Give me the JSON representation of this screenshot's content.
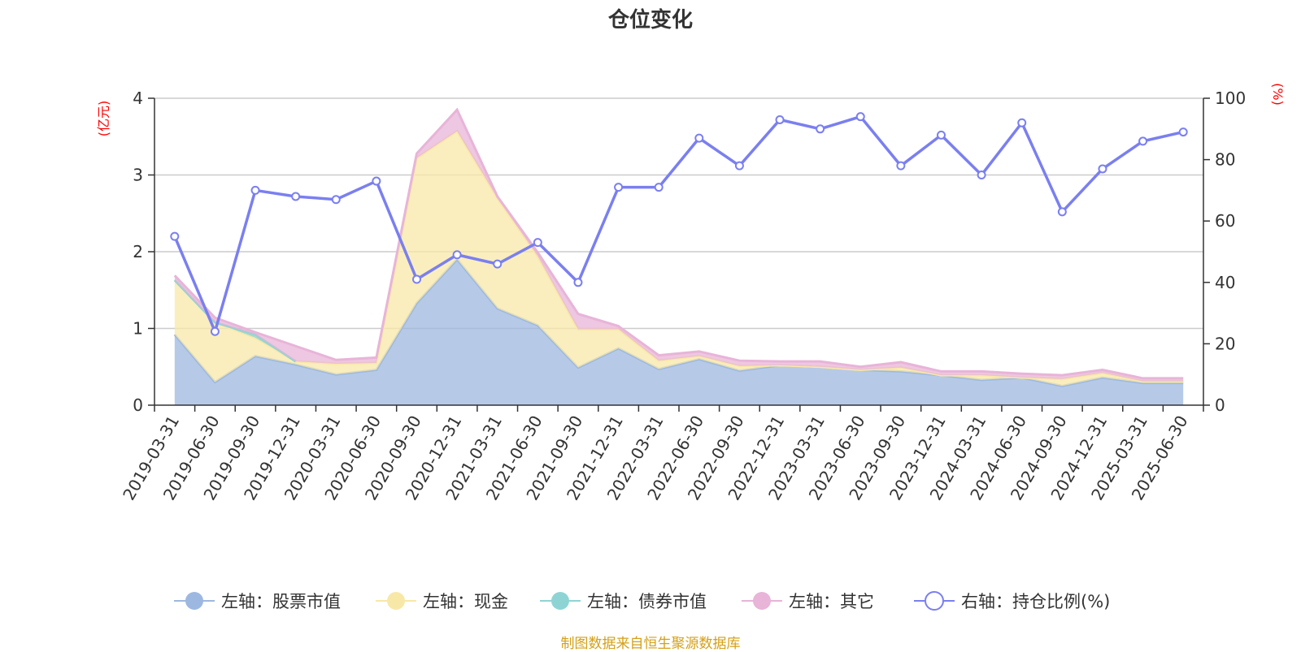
{
  "title": "仓位变化",
  "footer": "制图数据来自恒生聚源数据库",
  "colors": {
    "stock": "#9db8e0",
    "cash": "#f8e8a8",
    "bond": "#8fd4d4",
    "other": "#e8b4d8",
    "ratio": "#7a7ff0"
  },
  "chart_data": {
    "type": "area",
    "title": "仓位变化",
    "categories": [
      "2019-03-31",
      "2019-06-30",
      "2019-09-30",
      "2019-12-31",
      "2020-03-31",
      "2020-06-30",
      "2020-09-30",
      "2020-12-31",
      "2021-03-31",
      "2021-06-30",
      "2021-09-30",
      "2021-12-31",
      "2022-03-31",
      "2022-06-30",
      "2022-09-30",
      "2022-12-31",
      "2023-03-31",
      "2023-06-30",
      "2023-09-30",
      "2023-12-31",
      "2024-03-31",
      "2024-06-30",
      "2024-09-30",
      "2024-12-31",
      "2025-03-31",
      "2025-06-30"
    ],
    "left_axis": {
      "unit": "(亿元)",
      "ylim": [
        0,
        4
      ],
      "ticks": [
        "0",
        "1",
        "2",
        "3",
        "4"
      ]
    },
    "right_axis": {
      "unit": "(%)",
      "ylim": [
        0,
        100
      ],
      "ticks": [
        "0",
        "20",
        "40",
        "60",
        "80",
        "100"
      ]
    },
    "stacked": true,
    "grid": true,
    "legend_position": "bottom",
    "series": [
      {
        "name": "左轴：股票市值",
        "axis": "left",
        "kind": "area",
        "color": "#9db8e0",
        "values": [
          0.92,
          0.3,
          0.64,
          0.53,
          0.4,
          0.46,
          1.33,
          1.9,
          1.26,
          1.04,
          0.49,
          0.74,
          0.47,
          0.6,
          0.45,
          0.52,
          0.5,
          0.46,
          0.44,
          0.39,
          0.33,
          0.36,
          0.25,
          0.36,
          0.29,
          0.29
        ]
      },
      {
        "name": "左轴：现金",
        "axis": "left",
        "kind": "area",
        "color": "#f8e8a8",
        "values": [
          0.71,
          0.78,
          0.24,
          0.04,
          0.14,
          0.09,
          1.89,
          1.67,
          1.44,
          0.9,
          0.5,
          0.25,
          0.11,
          0.04,
          0.06,
          0.0,
          0.0,
          0.0,
          0.05,
          0.0,
          0.06,
          0.0,
          0.09,
          0.06,
          0.02,
          0.02
        ]
      },
      {
        "name": "左轴：债券市值",
        "axis": "left",
        "kind": "area",
        "color": "#8fd4d4",
        "values": [
          0,
          0,
          0.04,
          0.0,
          null,
          null,
          null,
          null,
          null,
          null,
          null,
          null,
          null,
          null,
          null,
          null,
          null,
          null,
          null,
          null,
          null,
          null,
          null,
          null,
          null,
          null
        ]
      },
      {
        "name": "左轴：其它",
        "axis": "left",
        "kind": "area",
        "color": "#e8b4d8",
        "values": [
          0.06,
          0.06,
          0.03,
          0.2,
          0.05,
          0.07,
          0.06,
          0.28,
          0.02,
          0.05,
          0.2,
          0.04,
          0.07,
          0.06,
          0.07,
          0.05,
          0.07,
          0.04,
          0.07,
          0.05,
          0.05,
          0.05,
          0.05,
          0.04,
          0.04,
          0.04
        ]
      },
      {
        "name": "右轴：持仓比例(%)",
        "axis": "right",
        "kind": "line",
        "color": "#7a7ff0",
        "values": [
          55,
          24,
          70,
          68,
          67,
          73,
          41,
          49,
          46,
          53,
          40,
          71,
          71,
          87,
          78,
          93,
          90,
          94,
          78,
          88,
          75,
          92,
          63,
          77,
          86,
          89
        ]
      }
    ]
  }
}
